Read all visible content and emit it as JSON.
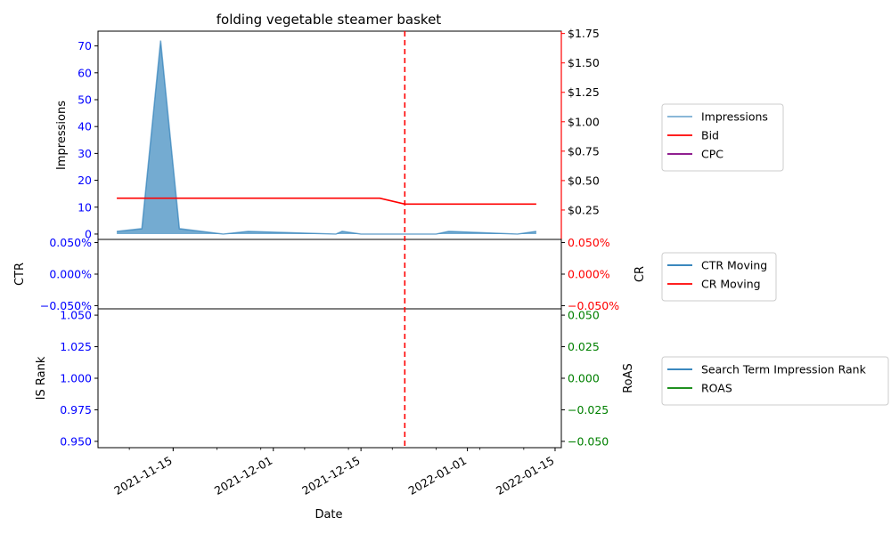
{
  "chart_data": {
    "type": "line",
    "title": "folding vegetable steamer basket",
    "xlabel": "Date",
    "x_range": [
      "2021-11-03",
      "2022-01-16"
    ],
    "x_ticks": [
      "2021-11-15",
      "2021-12-01",
      "2021-12-15",
      "2022-01-01",
      "2022-01-15"
    ],
    "marker_date": "2021-12-22",
    "marker_style": "red-dashed-vertical",
    "panels": [
      {
        "id": "top",
        "left_axis": {
          "label": "Impressions",
          "color": "#0000ff",
          "ylim": [
            -2,
            75.5
          ],
          "ticks": [
            "0",
            "10",
            "20",
            "30",
            "40",
            "50",
            "60",
            "70"
          ]
        },
        "right_axis": {
          "label": "",
          "color": "#ff0000",
          "ylim": [
            0.0,
            1.77
          ],
          "ticks": [
            "$0.25",
            "$0.50",
            "$0.75",
            "$1.00",
            "$1.25",
            "$1.50",
            "$1.75"
          ]
        },
        "series": [
          {
            "name": "Impressions",
            "axis": "left",
            "style": "area",
            "color": "#1f77b4",
            "x": [
              "2021-11-06",
              "2021-11-10",
              "2021-11-13",
              "2021-11-16",
              "2021-11-23",
              "2021-11-27",
              "2021-12-11",
              "2021-12-12",
              "2021-12-15",
              "2021-12-22",
              "2021-12-27",
              "2021-12-29",
              "2022-01-09",
              "2022-01-12"
            ],
            "y": [
              1,
              2,
              72,
              2,
              0,
              1,
              0,
              1,
              0,
              0,
              0,
              1,
              0,
              1
            ]
          },
          {
            "name": "Bid",
            "axis": "right",
            "style": "line",
            "color": "#ff0000",
            "x": [
              "2021-11-06",
              "2021-12-18",
              "2021-12-22",
              "2022-01-12"
            ],
            "y": [
              0.35,
              0.35,
              0.3,
              0.3
            ]
          },
          {
            "name": "CPC",
            "axis": "right",
            "style": "line",
            "color": "#800080",
            "x": [],
            "y": []
          }
        ]
      },
      {
        "id": "middle",
        "left_axis": {
          "label": "CTR",
          "color": "#0000ff",
          "ticks": [
            "0.050%",
            "0.000%",
            "−0.050%"
          ]
        },
        "right_axis": {
          "label": "CR",
          "color": "#ff0000",
          "ticks": [
            "0.050%",
            "0.000%",
            "−0.050%"
          ]
        },
        "series": [
          {
            "name": "CTR Moving",
            "color": "#1f77b4",
            "x": [],
            "y": []
          },
          {
            "name": "CR Moving",
            "color": "#ff0000",
            "x": [],
            "y": []
          }
        ]
      },
      {
        "id": "bottom",
        "left_axis": {
          "label": "IS Rank",
          "color": "#0000ff",
          "ticks": [
            "1.050",
            "1.025",
            "1.000",
            "0.975",
            "0.950"
          ]
        },
        "right_axis": {
          "label": "RoAS",
          "color": "#008000",
          "ticks": [
            "0.050",
            "0.025",
            "0.000",
            "−0.025",
            "−0.050"
          ]
        },
        "series": [
          {
            "name": "Search Term Impression Rank",
            "color": "#1f77b4",
            "x": [],
            "y": []
          },
          {
            "name": "ROAS",
            "color": "#008000",
            "x": [],
            "y": []
          }
        ]
      }
    ],
    "legends": [
      {
        "panel": "top",
        "entries": [
          {
            "label": "Impressions",
            "color": "#1f77b4",
            "alpha": 0.6
          },
          {
            "label": "Bid",
            "color": "#ff0000",
            "alpha": 1
          },
          {
            "label": "CPC",
            "color": "#800080",
            "alpha": 1
          }
        ]
      },
      {
        "panel": "middle",
        "entries": [
          {
            "label": "CTR Moving",
            "color": "#1f77b4",
            "alpha": 1
          },
          {
            "label": "CR Moving",
            "color": "#ff0000",
            "alpha": 1
          }
        ]
      },
      {
        "panel": "bottom",
        "entries": [
          {
            "label": "Search Term Impression Rank",
            "color": "#1f77b4",
            "alpha": 1
          },
          {
            "label": "ROAS",
            "color": "#008000",
            "alpha": 1
          }
        ]
      }
    ]
  }
}
